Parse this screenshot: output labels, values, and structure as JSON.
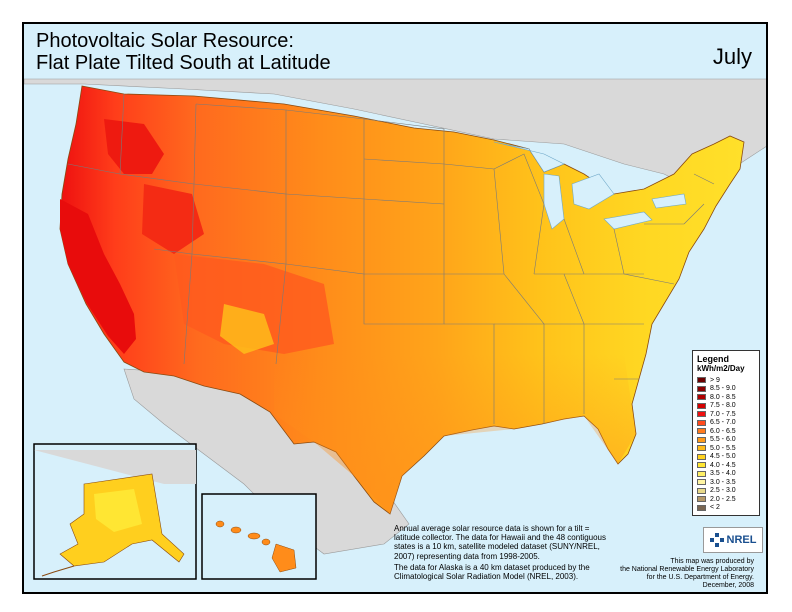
{
  "title_line1": "Photovoltaic Solar Resource:",
  "title_line2": "Flat Plate Tilted South at Latitude",
  "month": "July",
  "legend": {
    "title": "Legend",
    "unit": "kWh/m2/Day",
    "classes": [
      {
        "label": "> 9",
        "color": "#6b0000"
      },
      {
        "label": "8.5 - 9.0",
        "color": "#8b0000"
      },
      {
        "label": "8.0 - 8.5",
        "color": "#b00000"
      },
      {
        "label": "7.5 - 8.0",
        "color": "#d40000"
      },
      {
        "label": "7.0 - 7.5",
        "color": "#ee1010"
      },
      {
        "label": "6.5 - 7.0",
        "color": "#ff4a1c"
      },
      {
        "label": "6.0 - 6.5",
        "color": "#ff7a1e"
      },
      {
        "label": "5.5 - 6.0",
        "color": "#ff9a1a"
      },
      {
        "label": "5.0 - 5.5",
        "color": "#ffbb1a"
      },
      {
        "label": "4.5 - 5.0",
        "color": "#ffd21e"
      },
      {
        "label": "4.0 - 4.5",
        "color": "#ffe633"
      },
      {
        "label": "3.5 - 4.0",
        "color": "#fff066"
      },
      {
        "label": "3.0 - 3.5",
        "color": "#fff5a3"
      },
      {
        "label": "2.5 - 3.0",
        "color": "#e8d98a"
      },
      {
        "label": "2.0 - 2.5",
        "color": "#b59868"
      },
      {
        "label": "< 2",
        "color": "#7a6652"
      }
    ]
  },
  "note": {
    "p1": "Annual average solar resource data is shown for a tilt = latitude collector.  The data for Hawaii and the 48 contiguous states is a 10 km, satellite modeled dataset (SUNY/NREL, 2007) representing data from 1998-2005.",
    "p2": "The data for Alaska is a 40 km dataset produced by the Climatological Solar Radiation Model (NREL, 2003)."
  },
  "logo_text": "NREL",
  "credit": {
    "line1": "This map was produced by",
    "line2": "the National Renewable Energy Laboratory",
    "line3": "for the U.S. Department of Energy.",
    "line4": "December, 2008"
  },
  "colors": {
    "water": "#d7f0fb",
    "land_outside": "#d9d9d9",
    "state_border": "#7a7a7a"
  }
}
